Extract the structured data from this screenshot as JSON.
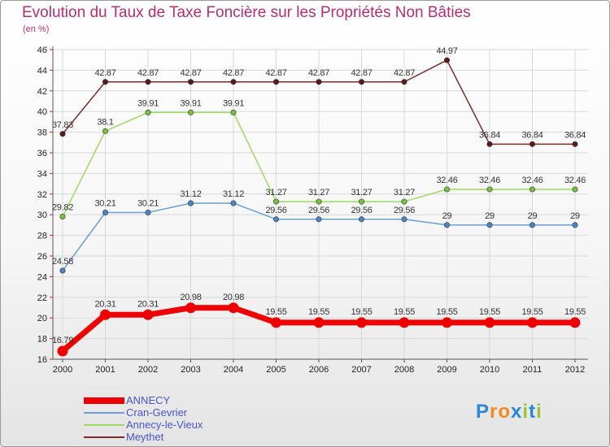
{
  "title": "Evolution du Taux de Taxe Foncière sur les Propriétés Non Bâties",
  "unit": "(en %)",
  "brand": {
    "text": "Proxiti",
    "letters": [
      "P",
      "r",
      "o",
      "x",
      "i",
      "t",
      "i"
    ],
    "colors": [
      "#2a86d6",
      "#f08a1c",
      "#f08a1c",
      "#2a86d6",
      "#9bc232",
      "#2a86d6",
      "#9bc232"
    ]
  },
  "chart_data": {
    "type": "line",
    "categories": [
      "2000",
      "2001",
      "2002",
      "2003",
      "2004",
      "2005",
      "2006",
      "2007",
      "2008",
      "2009",
      "2010",
      "2011",
      "2012"
    ],
    "ylim": [
      16,
      46
    ],
    "yticks": [
      16,
      18,
      20,
      22,
      24,
      26,
      28,
      30,
      32,
      34,
      36,
      38,
      40,
      42,
      44,
      46
    ],
    "xlabel": "",
    "ylabel": "(en %)",
    "grid": true,
    "legend_position": "bottom-left",
    "series": [
      {
        "name": "Meythet",
        "color": "#7a2a2a",
        "dot": "#5a1a1a",
        "values": [
          37.83,
          42.87,
          42.87,
          42.87,
          42.87,
          42.87,
          42.87,
          42.87,
          42.87,
          44.97,
          36.84,
          36.84,
          36.84
        ],
        "labels": [
          "37.83",
          "42.87",
          "42.87",
          "42.87",
          "42.87",
          "42.87",
          "42.87",
          "42.87",
          "42.87",
          "44.97",
          "36.84",
          "36.84",
          "36.84"
        ]
      },
      {
        "name": "Annecy-le-Vieux",
        "color": "#9ed866",
        "dot": "#78c040",
        "values": [
          29.82,
          38.1,
          39.91,
          39.91,
          39.91,
          31.27,
          31.27,
          31.27,
          31.27,
          32.46,
          32.46,
          32.46,
          32.46
        ],
        "labels": [
          "29.82",
          "38.1",
          "39.91",
          "39.91",
          "39.91",
          "31.27",
          "31.27",
          "31.27",
          "31.27",
          "32.46",
          "32.46",
          "32.46",
          "32.46"
        ]
      },
      {
        "name": "Cran-Gevrier",
        "color": "#6a9fd4",
        "dot": "#4a86c4",
        "values": [
          24.58,
          30.21,
          30.21,
          31.12,
          31.12,
          29.56,
          29.56,
          29.56,
          29.56,
          29,
          29,
          29,
          29
        ],
        "labels": [
          "24.58",
          "30.21",
          "30.21",
          "31.12",
          "31.12",
          "29.56",
          "29.56",
          "29.56",
          "29.56",
          "29",
          "29",
          "29",
          "29"
        ]
      },
      {
        "name": "ANNECY",
        "color": "#ee0000",
        "dot": "#ee0000",
        "values": [
          16.79,
          20.31,
          20.31,
          20.98,
          20.98,
          19.55,
          19.55,
          19.55,
          19.55,
          19.55,
          19.55,
          19.55,
          19.55
        ],
        "labels": [
          "16.79",
          "20.31",
          "20.31",
          "20.98",
          "20.98",
          "19.55",
          "19.55",
          "19.55",
          "19.55",
          "19.55",
          "19.55",
          "19.55",
          "19.55"
        ]
      }
    ],
    "legend": [
      "ANNECY",
      "Cran-Gevrier",
      "Annecy-le-Vieux",
      "Meythet"
    ]
  }
}
